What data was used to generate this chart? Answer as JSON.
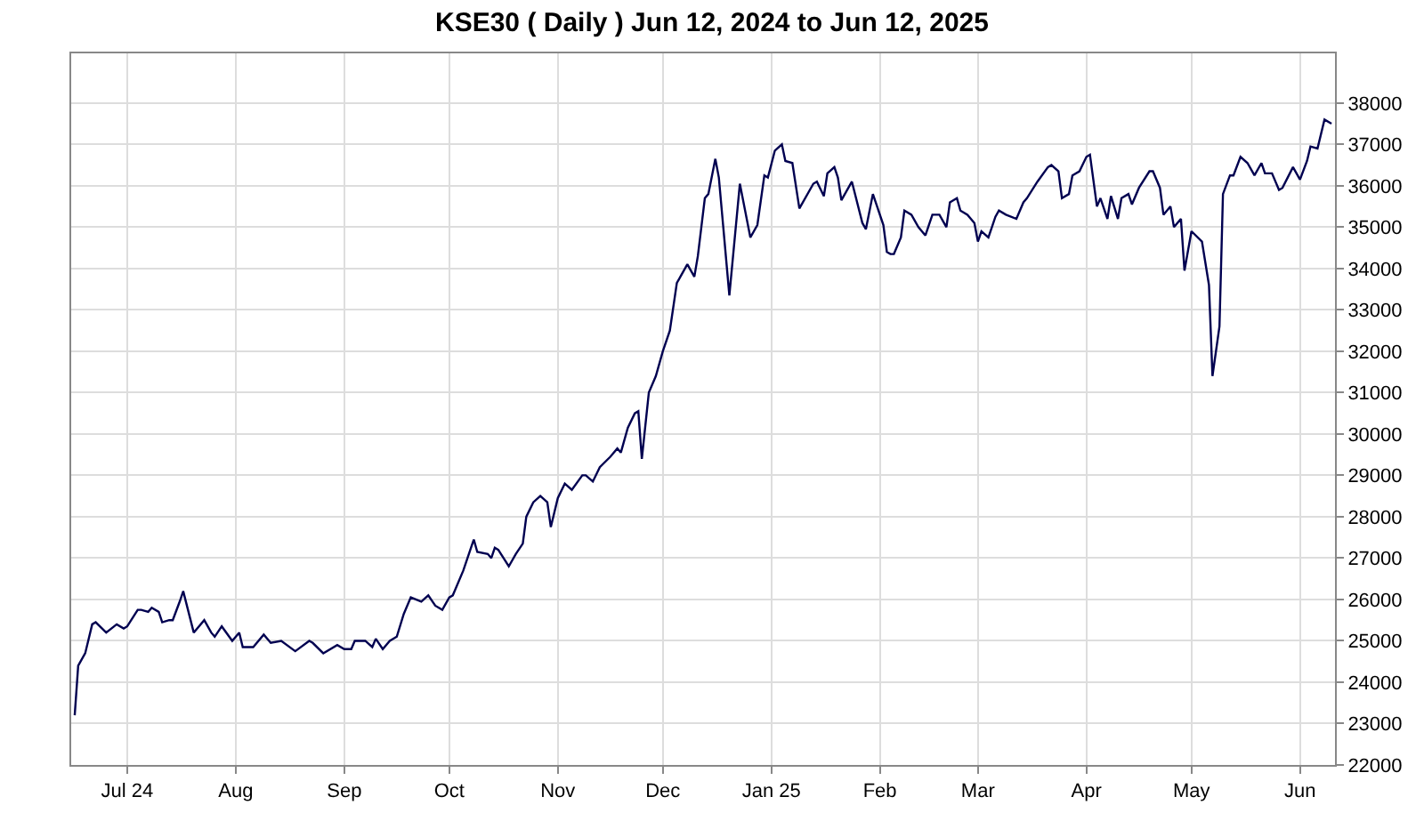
{
  "chart_data": {
    "type": "line",
    "title": "KSE30 ( Daily ) Jun 12, 2024 to Jun 12, 2025",
    "xlim": [
      "2024-06-15",
      "2025-06-11"
    ],
    "xticks": [
      {
        "value": "2024-07-01",
        "label": "Jul 24"
      },
      {
        "value": "2024-08-01",
        "label": "Aug"
      },
      {
        "value": "2024-09-01",
        "label": "Sep"
      },
      {
        "value": "2024-10-01",
        "label": "Oct"
      },
      {
        "value": "2024-11-01",
        "label": "Nov"
      },
      {
        "value": "2024-12-01",
        "label": "Dec"
      },
      {
        "value": "2025-01-01",
        "label": "Jan 25"
      },
      {
        "value": "2025-02-01",
        "label": "Feb"
      },
      {
        "value": "2025-03-01",
        "label": "Mar"
      },
      {
        "value": "2025-04-01",
        "label": "Apr"
      },
      {
        "value": "2025-05-01",
        "label": "May"
      },
      {
        "value": "2025-06-01",
        "label": "Jun"
      }
    ],
    "ylim": [
      22000,
      39200
    ],
    "yticks": [
      22000,
      23000,
      24000,
      25000,
      26000,
      27000,
      28000,
      29000,
      30000,
      31000,
      32000,
      33000,
      34000,
      35000,
      36000,
      37000,
      38000
    ],
    "grid": true,
    "legend": false,
    "marker": "none",
    "line_style": "solid",
    "x": [
      "2024-06-16",
      "2024-06-17",
      "2024-06-19",
      "2024-06-21",
      "2024-06-22",
      "2024-06-25",
      "2024-06-28",
      "2024-06-30",
      "2024-07-01",
      "2024-07-04",
      "2024-07-05",
      "2024-07-07",
      "2024-07-08",
      "2024-07-10",
      "2024-07-11",
      "2024-07-13",
      "2024-07-14",
      "2024-07-16",
      "2024-07-17",
      "2024-07-20",
      "2024-07-23",
      "2024-07-25",
      "2024-07-26",
      "2024-07-28",
      "2024-07-31",
      "2024-08-02",
      "2024-08-03",
      "2024-08-06",
      "2024-08-09",
      "2024-08-11",
      "2024-08-14",
      "2024-08-18",
      "2024-08-22",
      "2024-08-23",
      "2024-08-26",
      "2024-08-30",
      "2024-09-01",
      "2024-09-03",
      "2024-09-04",
      "2024-09-07",
      "2024-09-09",
      "2024-09-10",
      "2024-09-12",
      "2024-09-14",
      "2024-09-16",
      "2024-09-18",
      "2024-09-20",
      "2024-09-23",
      "2024-09-25",
      "2024-09-27",
      "2024-09-29",
      "2024-10-01",
      "2024-10-02",
      "2024-10-05",
      "2024-10-07",
      "2024-10-08",
      "2024-10-09",
      "2024-10-12",
      "2024-10-13",
      "2024-10-14",
      "2024-10-15",
      "2024-10-18",
      "2024-10-20",
      "2024-10-22",
      "2024-10-23",
      "2024-10-25",
      "2024-10-27",
      "2024-10-29",
      "2024-10-30",
      "2024-11-01",
      "2024-11-03",
      "2024-11-05",
      "2024-11-08",
      "2024-11-09",
      "2024-11-11",
      "2024-11-13",
      "2024-11-16",
      "2024-11-18",
      "2024-11-19",
      "2024-11-21",
      "2024-11-23",
      "2024-11-24",
      "2024-11-25",
      "2024-11-27",
      "2024-11-29",
      "2024-12-01",
      "2024-12-03",
      "2024-12-05",
      "2024-12-08",
      "2024-12-10",
      "2024-12-11",
      "2024-12-13",
      "2024-12-14",
      "2024-12-16",
      "2024-12-17",
      "2024-12-20",
      "2024-12-23",
      "2024-12-26",
      "2024-12-28",
      "2024-12-30",
      "2024-12-31",
      "2025-01-02",
      "2025-01-04",
      "2025-01-05",
      "2025-01-07",
      "2025-01-09",
      "2025-01-13",
      "2025-01-14",
      "2025-01-16",
      "2025-01-17",
      "2025-01-19",
      "2025-01-20",
      "2025-01-21",
      "2025-01-24",
      "2025-01-27",
      "2025-01-28",
      "2025-01-30",
      "2025-02-02",
      "2025-02-03",
      "2025-02-04",
      "2025-02-05",
      "2025-02-07",
      "2025-02-08",
      "2025-02-10",
      "2025-02-12",
      "2025-02-14",
      "2025-02-16",
      "2025-02-18",
      "2025-02-20",
      "2025-02-21",
      "2025-02-23",
      "2025-02-24",
      "2025-02-26",
      "2025-02-28",
      "2025-03-01",
      "2025-03-02",
      "2025-03-04",
      "2025-03-06",
      "2025-03-07",
      "2025-03-09",
      "2025-03-12",
      "2025-03-14",
      "2025-03-15",
      "2025-03-18",
      "2025-03-21",
      "2025-03-22",
      "2025-03-24",
      "2025-03-25",
      "2025-03-27",
      "2025-03-28",
      "2025-03-30",
      "2025-04-01",
      "2025-04-02",
      "2025-04-04",
      "2025-04-05",
      "2025-04-07",
      "2025-04-08",
      "2025-04-10",
      "2025-04-11",
      "2025-04-13",
      "2025-04-14",
      "2025-04-16",
      "2025-04-19",
      "2025-04-20",
      "2025-04-22",
      "2025-04-23",
      "2025-04-25",
      "2025-04-26",
      "2025-04-28",
      "2025-04-29",
      "2025-05-01",
      "2025-05-04",
      "2025-05-06",
      "2025-05-07",
      "2025-05-09",
      "2025-05-10",
      "2025-05-12",
      "2025-05-13",
      "2025-05-15",
      "2025-05-17",
      "2025-05-19",
      "2025-05-21",
      "2025-05-22",
      "2025-05-24",
      "2025-05-26",
      "2025-05-27",
      "2025-05-30",
      "2025-06-01",
      "2025-06-03",
      "2025-06-04",
      "2025-06-06",
      "2025-06-08",
      "2025-06-10"
    ],
    "series": [
      {
        "color": "#000050",
        "values": [
          23200,
          24400,
          24700,
          25400,
          25450,
          25200,
          25400,
          25300,
          25350,
          25750,
          25750,
          25700,
          25800,
          25700,
          25450,
          25500,
          25500,
          25950,
          26200,
          25200,
          25500,
          25200,
          25100,
          25350,
          25000,
          25200,
          24850,
          24850,
          25150,
          24950,
          25000,
          24750,
          25000,
          24950,
          24700,
          24900,
          24800,
          24800,
          25000,
          25000,
          24850,
          25050,
          24800,
          25000,
          25100,
          25650,
          26050,
          25950,
          26100,
          25850,
          25750,
          26050,
          26100,
          26700,
          27200,
          27450,
          27150,
          27100,
          27000,
          27250,
          27200,
          26800,
          27100,
          27350,
          28000,
          28350,
          28500,
          28350,
          27750,
          28450,
          28800,
          28650,
          29000,
          29000,
          28850,
          29200,
          29450,
          29650,
          29550,
          30150,
          30500,
          30550,
          29400,
          31000,
          31400,
          32000,
          32500,
          33650,
          34100,
          33800,
          34300,
          35700,
          35800,
          36650,
          36200,
          33350,
          36050,
          34750,
          35050,
          36250,
          36200,
          36850,
          37000,
          36600,
          36550,
          35450,
          36050,
          36100,
          35750,
          36300,
          36450,
          36200,
          35650,
          36100,
          35100,
          34950,
          35800,
          35050,
          34400,
          34350,
          34350,
          34750,
          35400,
          35300,
          35000,
          34800,
          35300,
          35300,
          35000,
          35600,
          35700,
          35400,
          35300,
          35100,
          34650,
          34900,
          34750,
          35250,
          35400,
          35300,
          35200,
          35600,
          35700,
          36100,
          36450,
          36500,
          36350,
          35700,
          35800,
          36250,
          36350,
          36700,
          36750,
          35500,
          35700,
          35200,
          35750,
          35200,
          35700,
          35800,
          35550,
          35950,
          36350,
          36350,
          35950,
          35300,
          35500,
          35000,
          35200,
          33950,
          34900,
          34650,
          33600,
          31400,
          32600,
          35800,
          36250,
          36250,
          36700,
          36550,
          36250,
          36550,
          36300,
          36300,
          35900,
          35950,
          36450,
          36150,
          36600,
          36950,
          36900,
          37600,
          37500
        ]
      }
    ]
  }
}
